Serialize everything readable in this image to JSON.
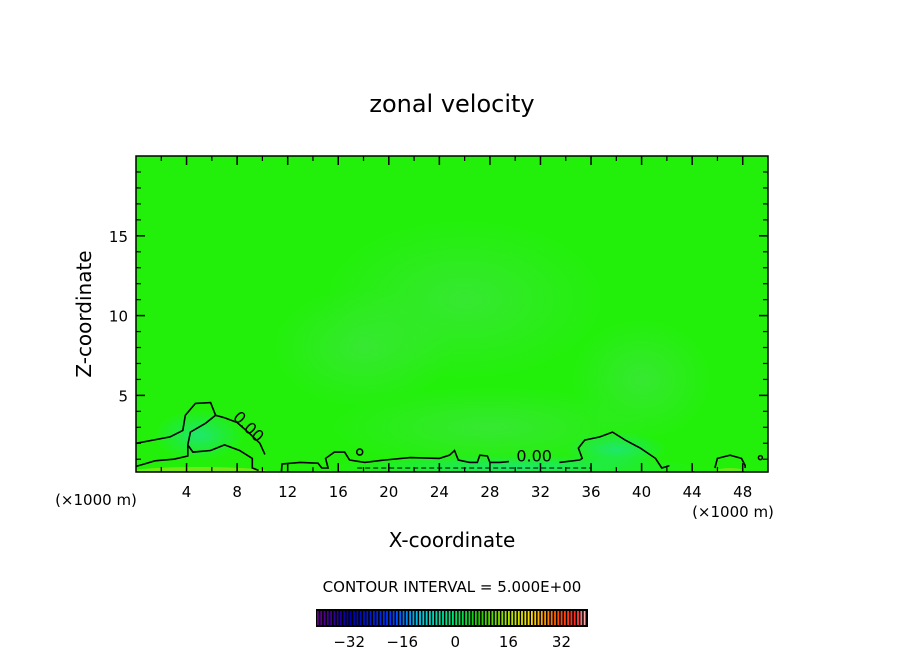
{
  "chart_data": {
    "type": "heatmap",
    "subtype": "filled-contour",
    "title": "zonal velocity",
    "xlabel": "X-coordinate",
    "ylabel": "Z-coordinate",
    "x_unit_left": "(×1000 m)",
    "x_unit_right": "(×1000 m)",
    "xlim": [
      0,
      50
    ],
    "ylim": [
      0.2,
      20
    ],
    "xticks": [
      4,
      8,
      12,
      16,
      20,
      24,
      28,
      32,
      36,
      40,
      44,
      48
    ],
    "xtick_labels": [
      "4",
      "8",
      "12",
      "16",
      "20",
      "24",
      "28",
      "32",
      "36",
      "40",
      "44",
      "48"
    ],
    "yticks": [
      5,
      10,
      15
    ],
    "ytick_labels": [
      "5",
      "10",
      "15"
    ],
    "field_colors": {
      "background": "#22f00a",
      "weak_positive": "#3cf03c",
      "near_zero": "#1ee676",
      "low_level_positive": "#8ce61e"
    },
    "contour_interval_label": "CONTOUR INTERVAL = 5.000E+00",
    "contour_labels": [
      {
        "text": "0.00",
        "x": 8.6,
        "z": 2.8,
        "angle": 45
      },
      {
        "text": "0.00",
        "x": 31.5,
        "z": 0.85,
        "angle": 0
      }
    ],
    "contours": [
      {
        "level": 0,
        "points": [
          [
            0,
            2.0
          ],
          [
            2.7,
            2.4
          ],
          [
            3.7,
            2.8
          ],
          [
            3.9,
            3.75
          ],
          [
            4.7,
            4.5
          ],
          [
            5.9,
            4.55
          ],
          [
            6.3,
            3.75
          ],
          [
            5.5,
            3.25
          ],
          [
            4.3,
            2.7
          ],
          [
            4.1,
            1.9
          ],
          [
            4.5,
            1.45
          ],
          [
            5.9,
            1.55
          ],
          [
            7.0,
            1.9
          ],
          [
            8.2,
            1.55
          ],
          [
            9.2,
            1.05
          ],
          [
            9.2,
            0.45
          ],
          [
            9.7,
            0.3
          ]
        ]
      },
      {
        "level": 0,
        "points": [
          [
            0,
            0.55
          ],
          [
            1.5,
            0.9
          ],
          [
            3.0,
            1.0
          ],
          [
            4.1,
            1.2
          ],
          [
            4.1,
            1.9
          ]
        ]
      },
      {
        "level": 0,
        "points": [
          [
            6.3,
            3.75
          ],
          [
            7.0,
            3.6
          ],
          [
            8.0,
            3.3
          ],
          [
            9.0,
            2.6
          ],
          [
            9.8,
            2.0
          ],
          [
            10.2,
            1.3
          ]
        ]
      },
      {
        "level": 0,
        "points": [
          [
            11.5,
            0.19
          ],
          [
            11.55,
            0.7
          ],
          [
            13.0,
            0.8
          ],
          [
            14.4,
            0.75
          ],
          [
            14.7,
            0.45
          ],
          [
            15.2,
            0.45
          ],
          [
            15.0,
            1.05
          ],
          [
            15.7,
            1.45
          ],
          [
            16.5,
            1.45
          ],
          [
            16.9,
            0.95
          ],
          [
            18.1,
            0.8
          ],
          [
            19.7,
            0.95
          ],
          [
            21.7,
            1.1
          ],
          [
            24.0,
            1.05
          ],
          [
            24.8,
            1.25
          ],
          [
            25.2,
            1.55
          ],
          [
            25.5,
            0.95
          ],
          [
            26.4,
            0.8
          ],
          [
            27.0,
            0.8
          ],
          [
            27.2,
            1.25
          ],
          [
            27.8,
            1.2
          ],
          [
            28.0,
            0.8
          ],
          [
            28.8,
            0.8
          ],
          [
            29.5,
            0.85
          ]
        ]
      },
      {
        "level": 0,
        "points": [
          [
            33.5,
            0.8
          ],
          [
            35.1,
            0.95
          ],
          [
            35.3,
            1.05
          ],
          [
            35.0,
            1.7
          ],
          [
            35.5,
            2.2
          ],
          [
            36.7,
            2.4
          ],
          [
            37.7,
            2.7
          ],
          [
            38.7,
            2.2
          ],
          [
            39.9,
            1.7
          ],
          [
            41.1,
            1.05
          ],
          [
            41.6,
            0.45
          ],
          [
            42.2,
            0.6
          ]
        ]
      },
      {
        "level": 0,
        "points": [
          [
            45.8,
            0.45
          ],
          [
            46.0,
            1.05
          ],
          [
            47.0,
            1.25
          ],
          [
            47.9,
            1.05
          ],
          [
            48.2,
            0.6
          ],
          [
            48.2,
            0.45
          ]
        ]
      }
    ],
    "colorbar": {
      "range": [
        -42,
        40
      ],
      "ticks": [
        -32,
        -16,
        0,
        16,
        32
      ],
      "tick_labels": [
        "−32",
        "−16",
        "0",
        "16",
        "32"
      ],
      "interval": 5
    }
  }
}
